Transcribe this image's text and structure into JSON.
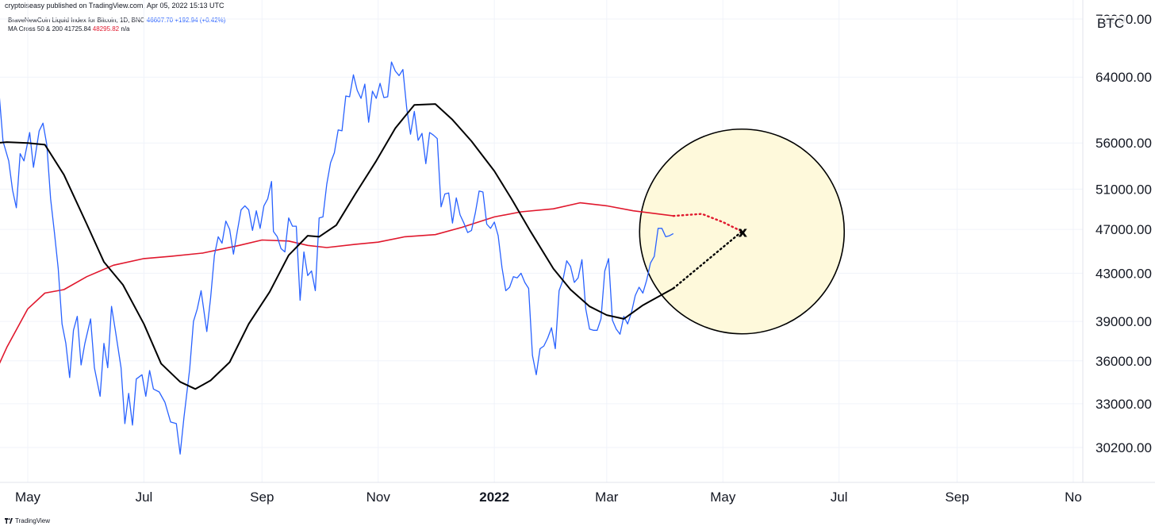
{
  "header": {
    "publisher_line": "cryptoiseasy published on TradingView.com, Apr 05, 2022 15:13 UTC"
  },
  "legend": {
    "symbol_line": "BraveNewCoin Liquid Index for Bitcoin, 1D, BNC",
    "symbol_price": "46607.70",
    "symbol_change": "+192.94 (+0.42%)",
    "ma_label": "MA Cross 50 & 200",
    "ma50_value": "41725.84",
    "ma200_value": "48295.82",
    "ma_na": "n/a"
  },
  "symbol_badge": "BTC",
  "footer": {
    "brand": "TradingView"
  },
  "colors": {
    "price": "#2962ff",
    "ma50": "#000000",
    "ma200": "#e0182d",
    "circle_fill": "#fef9db",
    "grid": "#f0f3fa"
  },
  "chart_data": {
    "type": "line",
    "scale": "log",
    "ylim": [
      28300,
      73000
    ],
    "xlim": [
      "2021-04-10",
      "2022-11-01"
    ],
    "y_tick_labels": [
      "72000.00",
      "64000.00",
      "56000.00",
      "51000.00",
      "47000.00",
      "43000.00",
      "39000.00",
      "36000.00",
      "33000.00",
      "30200.00"
    ],
    "x_tick_labels": [
      {
        "label": "May",
        "date": "2021-05-01",
        "bold": false
      },
      {
        "label": "Jul",
        "date": "2021-07-01",
        "bold": false
      },
      {
        "label": "Sep",
        "date": "2021-09-01",
        "bold": false
      },
      {
        "label": "Nov",
        "date": "2021-11-01",
        "bold": false
      },
      {
        "label": "2022",
        "date": "2022-01-01",
        "bold": true
      },
      {
        "label": "Mar",
        "date": "2022-03-01",
        "bold": false
      },
      {
        "label": "May",
        "date": "2022-05-01",
        "bold": false
      },
      {
        "label": "Jul",
        "date": "2022-07-01",
        "bold": false
      },
      {
        "label": "Sep",
        "date": "2022-09-01",
        "bold": false
      },
      {
        "label": "No",
        "date": "2022-11-01",
        "bold": false
      }
    ],
    "series": [
      {
        "key": "price",
        "values": [
          [
            "2021-04-10",
            59800
          ],
          [
            "2021-04-13",
            63500
          ],
          [
            "2021-04-16",
            61800
          ],
          [
            "2021-04-18",
            56200
          ],
          [
            "2021-04-21",
            54000
          ],
          [
            "2021-04-23",
            50900
          ],
          [
            "2021-04-25",
            49100
          ],
          [
            "2021-04-27",
            54800
          ],
          [
            "2021-04-29",
            54000
          ],
          [
            "2021-05-02",
            57200
          ],
          [
            "2021-05-04",
            53300
          ],
          [
            "2021-05-07",
            57400
          ],
          [
            "2021-05-09",
            58300
          ],
          [
            "2021-05-11",
            55800
          ],
          [
            "2021-05-13",
            50000
          ],
          [
            "2021-05-15",
            46700
          ],
          [
            "2021-05-17",
            43400
          ],
          [
            "2021-05-19",
            38800
          ],
          [
            "2021-05-21",
            37300
          ],
          [
            "2021-05-23",
            34800
          ],
          [
            "2021-05-25",
            38300
          ],
          [
            "2021-05-27",
            39400
          ],
          [
            "2021-05-29",
            35700
          ],
          [
            "2021-05-31",
            37300
          ],
          [
            "2021-06-03",
            39200
          ],
          [
            "2021-06-05",
            35500
          ],
          [
            "2021-06-08",
            33500
          ],
          [
            "2021-06-10",
            37300
          ],
          [
            "2021-06-12",
            35500
          ],
          [
            "2021-06-14",
            40200
          ],
          [
            "2021-06-16",
            38300
          ],
          [
            "2021-06-19",
            35500
          ],
          [
            "2021-06-21",
            31700
          ],
          [
            "2021-06-23",
            33700
          ],
          [
            "2021-06-25",
            31600
          ],
          [
            "2021-06-27",
            34700
          ],
          [
            "2021-06-30",
            35000
          ],
          [
            "2021-07-02",
            33500
          ],
          [
            "2021-07-04",
            35300
          ],
          [
            "2021-07-06",
            34000
          ],
          [
            "2021-07-09",
            33800
          ],
          [
            "2021-07-12",
            33100
          ],
          [
            "2021-07-15",
            31800
          ],
          [
            "2021-07-18",
            31700
          ],
          [
            "2021-07-20",
            29800
          ],
          [
            "2021-07-22",
            32100
          ],
          [
            "2021-07-25",
            35400
          ],
          [
            "2021-07-27",
            39000
          ],
          [
            "2021-07-29",
            40000
          ],
          [
            "2021-07-31",
            41500
          ],
          [
            "2021-08-03",
            38200
          ],
          [
            "2021-08-05",
            40900
          ],
          [
            "2021-08-07",
            44600
          ],
          [
            "2021-08-09",
            46300
          ],
          [
            "2021-08-11",
            45700
          ],
          [
            "2021-08-13",
            47800
          ],
          [
            "2021-08-15",
            47000
          ],
          [
            "2021-08-17",
            44700
          ],
          [
            "2021-08-19",
            46800
          ],
          [
            "2021-08-21",
            48900
          ],
          [
            "2021-08-23",
            49300
          ],
          [
            "2021-08-25",
            48900
          ],
          [
            "2021-08-27",
            46900
          ],
          [
            "2021-08-29",
            48800
          ],
          [
            "2021-08-31",
            47100
          ],
          [
            "2021-09-02",
            49300
          ],
          [
            "2021-09-04",
            50000
          ],
          [
            "2021-09-06",
            51800
          ],
          [
            "2021-09-07",
            46800
          ],
          [
            "2021-09-09",
            46300
          ],
          [
            "2021-09-11",
            45200
          ],
          [
            "2021-09-13",
            44900
          ],
          [
            "2021-09-15",
            48100
          ],
          [
            "2021-09-17",
            47300
          ],
          [
            "2021-09-19",
            47300
          ],
          [
            "2021-09-21",
            40700
          ],
          [
            "2021-09-23",
            44900
          ],
          [
            "2021-09-25",
            42800
          ],
          [
            "2021-09-27",
            43200
          ],
          [
            "2021-09-29",
            41500
          ],
          [
            "2021-10-01",
            48100
          ],
          [
            "2021-10-03",
            48200
          ],
          [
            "2021-10-05",
            51500
          ],
          [
            "2021-10-07",
            53800
          ],
          [
            "2021-10-09",
            54900
          ],
          [
            "2021-10-11",
            57500
          ],
          [
            "2021-10-13",
            57400
          ],
          [
            "2021-10-15",
            61600
          ],
          [
            "2021-10-17",
            61500
          ],
          [
            "2021-10-19",
            64300
          ],
          [
            "2021-10-21",
            62300
          ],
          [
            "2021-10-23",
            61300
          ],
          [
            "2021-10-25",
            63100
          ],
          [
            "2021-10-27",
            58400
          ],
          [
            "2021-10-29",
            62200
          ],
          [
            "2021-10-31",
            61300
          ],
          [
            "2021-11-02",
            63200
          ],
          [
            "2021-11-04",
            61400
          ],
          [
            "2021-11-06",
            61500
          ],
          [
            "2021-11-08",
            66000
          ],
          [
            "2021-11-10",
            64800
          ],
          [
            "2021-11-12",
            64200
          ],
          [
            "2021-11-14",
            65000
          ],
          [
            "2021-11-16",
            60100
          ],
          [
            "2021-11-18",
            57000
          ],
          [
            "2021-11-20",
            59700
          ],
          [
            "2021-11-22",
            56300
          ],
          [
            "2021-11-24",
            57100
          ],
          [
            "2021-11-26",
            53700
          ],
          [
            "2021-11-28",
            57200
          ],
          [
            "2021-11-30",
            56900
          ],
          [
            "2021-12-02",
            56500
          ],
          [
            "2021-12-04",
            49200
          ],
          [
            "2021-12-06",
            50500
          ],
          [
            "2021-12-08",
            50600
          ],
          [
            "2021-12-10",
            47600
          ],
          [
            "2021-12-12",
            50100
          ],
          [
            "2021-12-14",
            48400
          ],
          [
            "2021-12-16",
            47600
          ],
          [
            "2021-12-18",
            46700
          ],
          [
            "2021-12-20",
            46900
          ],
          [
            "2021-12-22",
            48600
          ],
          [
            "2021-12-24",
            50800
          ],
          [
            "2021-12-26",
            50700
          ],
          [
            "2021-12-28",
            47500
          ],
          [
            "2021-12-30",
            47100
          ],
          [
            "2022-01-01",
            47700
          ],
          [
            "2022-01-03",
            46400
          ],
          [
            "2022-01-05",
            43500
          ],
          [
            "2022-01-07",
            41500
          ],
          [
            "2022-01-09",
            41800
          ],
          [
            "2022-01-11",
            42700
          ],
          [
            "2022-01-13",
            42600
          ],
          [
            "2022-01-15",
            43000
          ],
          [
            "2022-01-17",
            42200
          ],
          [
            "2022-01-19",
            41700
          ],
          [
            "2022-01-21",
            36400
          ],
          [
            "2022-01-23",
            35000
          ],
          [
            "2022-01-25",
            36900
          ],
          [
            "2022-01-27",
            37100
          ],
          [
            "2022-01-29",
            37700
          ],
          [
            "2022-01-31",
            38500
          ],
          [
            "2022-02-02",
            36900
          ],
          [
            "2022-02-04",
            41500
          ],
          [
            "2022-02-06",
            42400
          ],
          [
            "2022-02-08",
            44100
          ],
          [
            "2022-02-10",
            43600
          ],
          [
            "2022-02-12",
            42200
          ],
          [
            "2022-02-14",
            42600
          ],
          [
            "2022-02-16",
            44200
          ],
          [
            "2022-02-18",
            40000
          ],
          [
            "2022-02-20",
            38400
          ],
          [
            "2022-02-22",
            38300
          ],
          [
            "2022-02-24",
            38300
          ],
          [
            "2022-02-26",
            39200
          ],
          [
            "2022-02-28",
            43200
          ],
          [
            "2022-03-02",
            44300
          ],
          [
            "2022-03-04",
            39100
          ],
          [
            "2022-03-06",
            38400
          ],
          [
            "2022-03-08",
            38000
          ],
          [
            "2022-03-10",
            39400
          ],
          [
            "2022-03-12",
            38800
          ],
          [
            "2022-03-14",
            39700
          ],
          [
            "2022-03-16",
            41100
          ],
          [
            "2022-03-18",
            41800
          ],
          [
            "2022-03-20",
            41300
          ],
          [
            "2022-03-22",
            42400
          ],
          [
            "2022-03-24",
            43900
          ],
          [
            "2022-03-26",
            44500
          ],
          [
            "2022-03-28",
            47100
          ],
          [
            "2022-03-30",
            47100
          ],
          [
            "2022-04-01",
            46300
          ],
          [
            "2022-04-03",
            46400
          ],
          [
            "2022-04-05",
            46600
          ]
        ]
      },
      {
        "key": "ma50",
        "values": [
          [
            "2021-04-10",
            55900
          ],
          [
            "2021-04-20",
            56100
          ],
          [
            "2021-05-01",
            56000
          ],
          [
            "2021-05-10",
            55800
          ],
          [
            "2021-05-20",
            52500
          ],
          [
            "2021-06-01",
            47500
          ],
          [
            "2021-06-10",
            44000
          ],
          [
            "2021-06-20",
            42000
          ],
          [
            "2021-07-01",
            38800
          ],
          [
            "2021-07-10",
            35800
          ],
          [
            "2021-07-20",
            34500
          ],
          [
            "2021-07-28",
            34000
          ],
          [
            "2021-08-05",
            34600
          ],
          [
            "2021-08-15",
            35900
          ],
          [
            "2021-08-25",
            38800
          ],
          [
            "2021-09-05",
            41400
          ],
          [
            "2021-09-15",
            44600
          ],
          [
            "2021-09-25",
            46400
          ],
          [
            "2021-10-01",
            46300
          ],
          [
            "2021-10-10",
            47400
          ],
          [
            "2021-10-20",
            50500
          ],
          [
            "2021-10-31",
            54000
          ],
          [
            "2021-11-10",
            57700
          ],
          [
            "2021-11-20",
            60500
          ],
          [
            "2021-12-01",
            60600
          ],
          [
            "2021-12-10",
            58700
          ],
          [
            "2021-12-20",
            56200
          ],
          [
            "2022-01-01",
            52900
          ],
          [
            "2022-01-10",
            50000
          ],
          [
            "2022-01-20",
            46800
          ],
          [
            "2022-02-01",
            43400
          ],
          [
            "2022-02-10",
            41600
          ],
          [
            "2022-02-20",
            40200
          ],
          [
            "2022-03-01",
            39500
          ],
          [
            "2022-03-10",
            39200
          ],
          [
            "2022-03-20",
            40300
          ],
          [
            "2022-04-05",
            41700
          ]
        ]
      },
      {
        "key": "ma200",
        "values": [
          [
            "2021-04-10",
            34000
          ],
          [
            "2021-04-20",
            37000
          ],
          [
            "2021-05-01",
            40000
          ],
          [
            "2021-05-10",
            41300
          ],
          [
            "2021-05-20",
            41600
          ],
          [
            "2021-06-01",
            42700
          ],
          [
            "2021-06-15",
            43700
          ],
          [
            "2021-07-01",
            44300
          ],
          [
            "2021-07-15",
            44500
          ],
          [
            "2021-08-01",
            44800
          ],
          [
            "2021-08-20",
            45500
          ],
          [
            "2021-09-01",
            46000
          ],
          [
            "2021-09-15",
            45900
          ],
          [
            "2021-09-25",
            45500
          ],
          [
            "2021-10-05",
            45300
          ],
          [
            "2021-10-20",
            45600
          ],
          [
            "2021-11-01",
            45800
          ],
          [
            "2021-11-15",
            46300
          ],
          [
            "2021-12-01",
            46500
          ],
          [
            "2021-12-15",
            47200
          ],
          [
            "2022-01-01",
            48200
          ],
          [
            "2022-01-15",
            48700
          ],
          [
            "2022-02-01",
            49000
          ],
          [
            "2022-02-15",
            49600
          ],
          [
            "2022-03-01",
            49300
          ],
          [
            "2022-03-15",
            48800
          ],
          [
            "2022-04-05",
            48300
          ]
        ]
      }
    ],
    "projections": [
      {
        "from": "ma200",
        "color": "#e0182d",
        "points": [
          [
            "2022-04-05",
            48300
          ],
          [
            "2022-04-20",
            48500
          ],
          [
            "2022-05-01",
            47700
          ],
          [
            "2022-05-11",
            46800
          ]
        ]
      },
      {
        "from": "ma50",
        "color": "#000000",
        "points": [
          [
            "2022-04-05",
            41700
          ],
          [
            "2022-05-11",
            46800
          ]
        ]
      }
    ],
    "target_marker": {
      "label": "X",
      "date": "2022-05-11",
      "value": 46800
    },
    "highlight_circle": {
      "center_date": "2022-05-11",
      "center_value": 46800
    }
  }
}
